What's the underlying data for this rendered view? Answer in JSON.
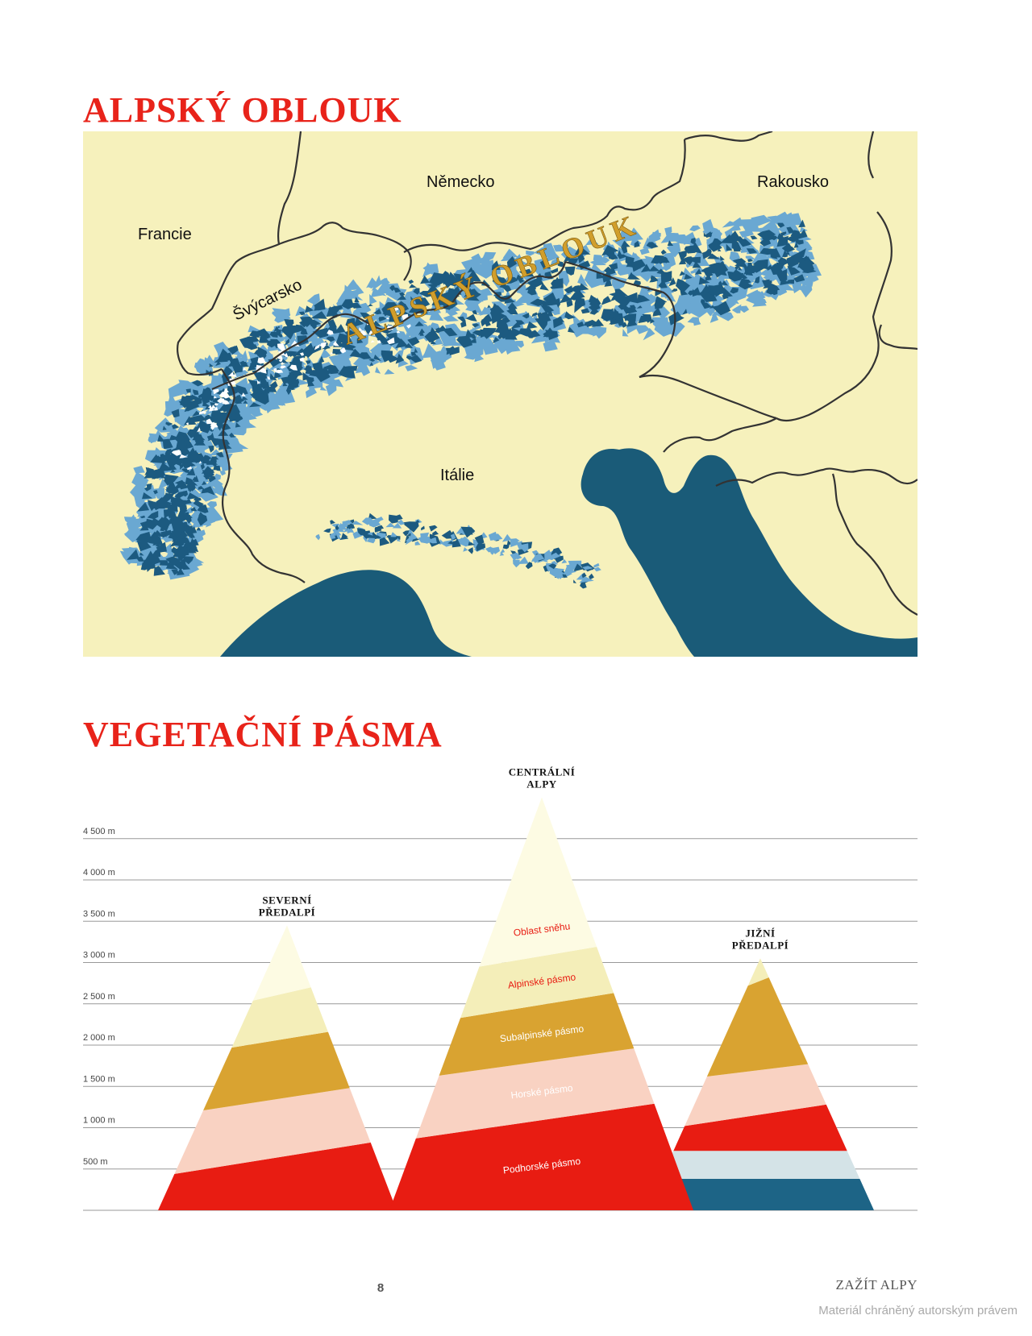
{
  "map": {
    "title": "ALPSKÝ OBLOUK",
    "arc_label": "ALPSKÝ OBLOUK",
    "country_labels": [
      {
        "id": "france",
        "text": "Francie"
      },
      {
        "id": "germany",
        "text": "Německo"
      },
      {
        "id": "austria",
        "text": "Rakousko"
      },
      {
        "id": "switzerland",
        "text": "Švýcarsko"
      },
      {
        "id": "italy",
        "text": "Itálie"
      }
    ],
    "colors": {
      "land": "#f6f1bc",
      "sea": "#1a5b78",
      "mountains_light": "#6aa8d2",
      "mountains_dark": "#1c5a80",
      "border": "#333333",
      "arc_label": "#d19e2b"
    }
  },
  "vegetation": {
    "title": "VEGETAČNÍ PÁSMA",
    "axis": {
      "unit": "m",
      "ticks": [
        {
          "value": 500,
          "label": "500 m"
        },
        {
          "value": 1000,
          "label": "1 000 m"
        },
        {
          "value": 1500,
          "label": "1 500 m"
        },
        {
          "value": 2000,
          "label": "2 000 m"
        },
        {
          "value": 2500,
          "label": "2 500 m"
        },
        {
          "value": 3000,
          "label": "3 000 m"
        },
        {
          "value": 3500,
          "label": "3 500 m"
        },
        {
          "value": 4000,
          "label": "4 000 m"
        },
        {
          "value": 4500,
          "label": "4 500 m"
        }
      ]
    },
    "zones": [
      {
        "id": "podhorske",
        "label": "Podhorské pásmo",
        "color": "#e81c12",
        "label_color": "#ffffff"
      },
      {
        "id": "horske",
        "label": "Horské pásmo",
        "color": "#f9d2c2",
        "label_color": "#ffffff"
      },
      {
        "id": "subalpinske",
        "label": "Subalpinské pásmo",
        "color": "#d9a331",
        "label_color": "#ffffff"
      },
      {
        "id": "alpinske",
        "label": "Alpinské pásmo",
        "color": "#f4eeb9",
        "label_color": "#e81c12"
      },
      {
        "id": "snih",
        "label": "Oblast sněhu",
        "color": "#fdfbe3",
        "label_color": "#e81c12"
      }
    ],
    "mountains": [
      {
        "id": "severni",
        "title_lines": [
          "SEVERNÍ",
          "PŘEDALPÍ"
        ],
        "peak_m": 3450,
        "bands": [
          {
            "zone": "podhorske",
            "top_left": 440,
            "top_right": 820
          },
          {
            "zone": "horske",
            "top_left": 1210,
            "top_right": 1480
          },
          {
            "zone": "subalpinske",
            "top_left": 1970,
            "top_right": 2160
          },
          {
            "zone": "alpinske",
            "top_left": 2540,
            "top_right": 2700
          },
          {
            "zone": "snih",
            "top_left": 3450,
            "top_right": 3450
          }
        ]
      },
      {
        "id": "centralni",
        "title_lines": [
          "CENTRÁLNÍ",
          "ALPY"
        ],
        "peak_m": 5000,
        "bands": [
          {
            "zone": "podhorske",
            "top_left": 870,
            "top_right": 1290
          },
          {
            "zone": "horske",
            "top_left": 1630,
            "top_right": 1960
          },
          {
            "zone": "subalpinske",
            "top_left": 2330,
            "top_right": 2630
          },
          {
            "zone": "alpinske",
            "top_left": 2950,
            "top_right": 3190
          },
          {
            "zone": "snih",
            "top_left": 5000,
            "top_right": 5000
          }
        ]
      },
      {
        "id": "jizni",
        "title_lines": [
          "JIŽNÍ",
          "PŘEDALPÍ"
        ],
        "peak_m": 3050,
        "bands": [
          {
            "zone": "base_dark",
            "top_left": 380,
            "top_right": 380
          },
          {
            "zone": "base_light",
            "top_left": 720,
            "top_right": 720
          },
          {
            "zone": "podhorske",
            "top_left": 1020,
            "top_right": 1280
          },
          {
            "zone": "horske",
            "top_left": 1620,
            "top_right": 1770
          },
          {
            "zone": "subalpinske",
            "top_left": 2720,
            "top_right": 2820
          },
          {
            "zone": "alpinske",
            "top_left": 3050,
            "top_right": 3050
          }
        ]
      }
    ],
    "base_colors": {
      "base_dark": "#1d6486",
      "base_light": "#d4e3e7"
    }
  },
  "footer": {
    "page_number": "8",
    "book_title": "ZAŽÍT ALPY",
    "watermark": "Materiál chráněný autorským právem"
  }
}
